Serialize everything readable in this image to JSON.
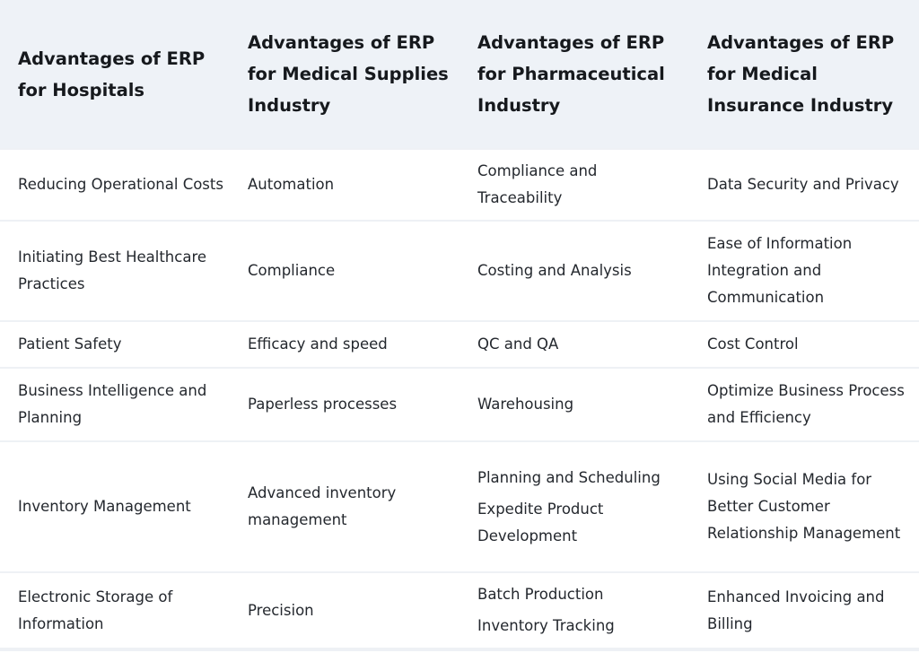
{
  "headers": [
    "Advantages of ERP for Hospitals",
    "Advantages of ERP for Medical Supplies Industry",
    "Advantages of ERP for Pharmaceutical Industry",
    "Advantages of ERP for Medical Insurance Industry"
  ],
  "rows": [
    {
      "hospitals": "Reducing Operational Costs",
      "supplies": "Automation",
      "pharma": [
        "Compliance and Traceability"
      ],
      "insurance": "Data Security and Privacy"
    },
    {
      "hospitals": "Initiating Best Healthcare Practices",
      "supplies": "Compliance",
      "pharma": [
        "Costing and Analysis"
      ],
      "insurance": "Ease of Information Integration and Communication"
    },
    {
      "hospitals": "Patient Safety",
      "supplies": "Efficacy and speed",
      "pharma": [
        "QC and QA"
      ],
      "insurance": "Cost Control"
    },
    {
      "hospitals": "Business Intelligence and Planning",
      "supplies": "Paperless processes",
      "pharma": [
        "Warehousing"
      ],
      "insurance": "Optimize Business Process and Efficiency"
    },
    {
      "hospitals": "Inventory Management",
      "supplies": "Advanced inventory management",
      "pharma": [
        "Planning and Scheduling",
        "Expedite Product Development"
      ],
      "insurance": "Using Social Media for Better Customer Relationship Management"
    },
    {
      "hospitals": "Electronic Storage of Information",
      "supplies": "Precision",
      "pharma": [
        "Batch Production",
        "Inventory Tracking"
      ],
      "insurance": "Enhanced Invoicing and Billing"
    }
  ]
}
